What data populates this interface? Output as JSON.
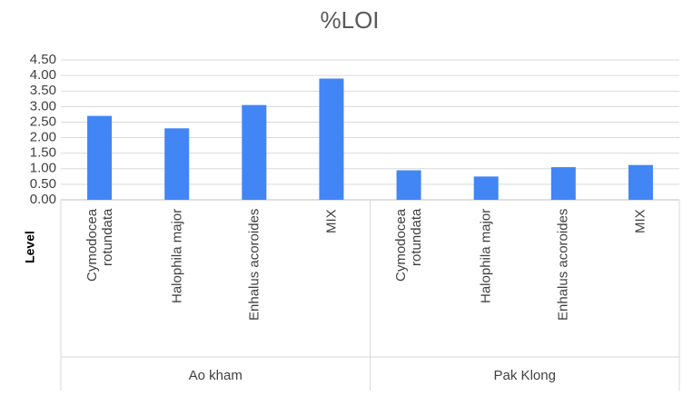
{
  "chart_data": {
    "type": "bar",
    "title": "%LOI",
    "y_label": "Level",
    "categories": [
      "Cymodocea rotundata",
      "Halophila major",
      "Enhalus acoroides",
      "MIX",
      "Cymodocea rotundata",
      "Halophila major",
      "Enhalus acoroides",
      "MIX"
    ],
    "groups": [
      "Ao kham",
      "Pak Klong"
    ],
    "values": [
      2.7,
      2.3,
      3.05,
      3.9,
      0.95,
      0.75,
      1.05,
      1.12
    ],
    "color": "#4285f4",
    "ylim": [
      0,
      4.5
    ],
    "yticks": [
      {
        "value": 0,
        "label": "0.00"
      },
      {
        "value": 0.5,
        "label": "0.50"
      },
      {
        "value": 1,
        "label": "1.00"
      },
      {
        "value": 1.5,
        "label": "1.50"
      },
      {
        "value": 2,
        "label": "2.00"
      },
      {
        "value": 2.5,
        "label": "2.50"
      },
      {
        "value": 3,
        "label": "3.00"
      },
      {
        "value": 3.5,
        "label": "3.50"
      },
      {
        "value": 4,
        "label": "4.00"
      },
      {
        "value": 4.5,
        "label": "4.50"
      }
    ],
    "grid": true
  }
}
